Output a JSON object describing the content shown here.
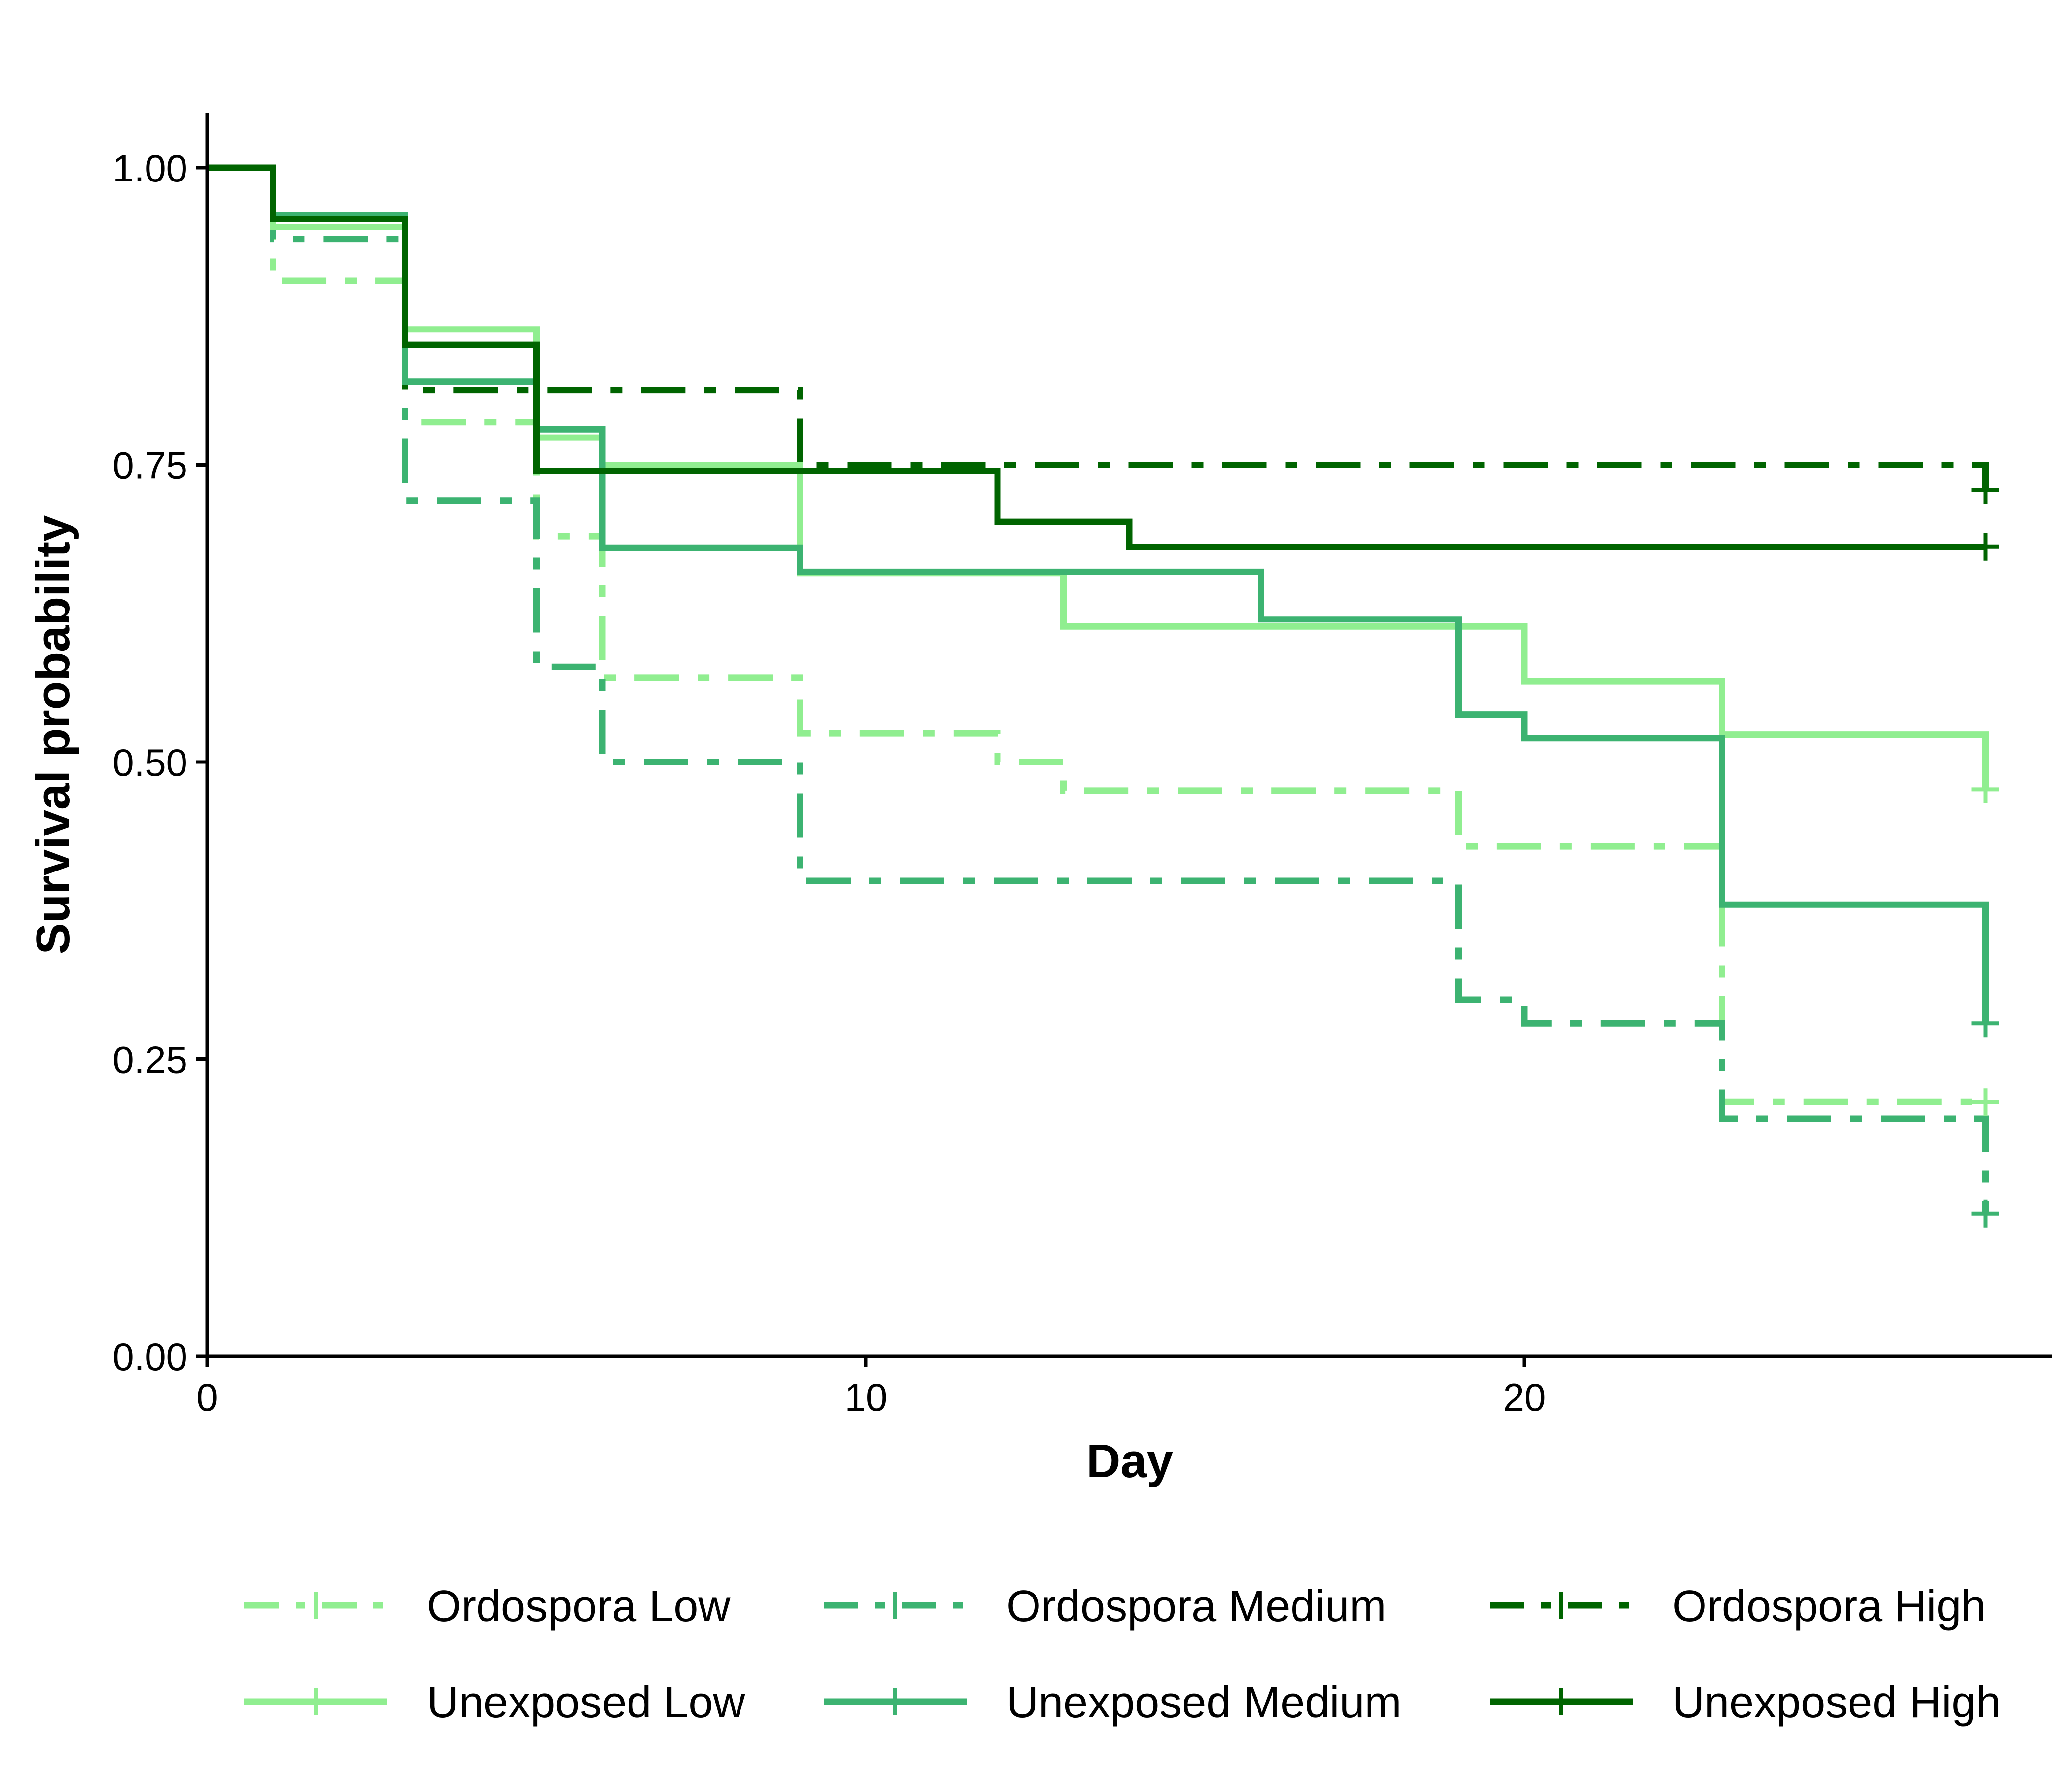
{
  "chart_data": {
    "type": "line",
    "step": "post",
    "xlabel": "Day",
    "ylabel": "Survival probability",
    "xlim": [
      0,
      28
    ],
    "ylim": [
      0,
      1.05
    ],
    "x_ticks": [
      0,
      10,
      20
    ],
    "x_tick_labels": [
      "0",
      "10",
      "20"
    ],
    "y_ticks": [
      0,
      0.25,
      0.5,
      0.75,
      1.0
    ],
    "y_tick_labels": [
      "0.00",
      "0.25",
      "0.50",
      "0.75",
      "1.00"
    ],
    "grid": false,
    "legend_position": "bottom",
    "legend_columns": 3,
    "censor_marker": "+",
    "series": [
      {
        "name": "Ordospora Low",
        "color": "#90ee90",
        "linestyle": "dotdash",
        "x": [
          0,
          1,
          3,
          5,
          6,
          9,
          12,
          13,
          19,
          23,
          27
        ],
        "y": [
          1.0,
          0.905,
          0.786,
          0.69,
          0.571,
          0.524,
          0.5,
          0.476,
          0.429,
          0.214,
          0.214
        ],
        "censor_x": [
          27
        ],
        "censor_y": [
          0.214
        ]
      },
      {
        "name": "Ordospora Medium",
        "color": "#3cb371",
        "linestyle": "dotdash",
        "x": [
          0,
          1,
          3,
          5,
          6,
          9,
          19,
          20,
          23,
          27
        ],
        "y": [
          1.0,
          0.94,
          0.72,
          0.58,
          0.5,
          0.4,
          0.3,
          0.28,
          0.2,
          0.12
        ],
        "censor_x": [
          27
        ],
        "censor_y": [
          0.12
        ]
      },
      {
        "name": "Ordospora High",
        "color": "#006400",
        "linestyle": "dotdash",
        "x": [
          0,
          1,
          3,
          9,
          27
        ],
        "y": [
          1.0,
          0.958,
          0.813,
          0.75,
          0.729
        ],
        "censor_x": [
          27
        ],
        "censor_y": [
          0.729
        ]
      },
      {
        "name": "Unexposed Low",
        "color": "#90ee90",
        "linestyle": "solid",
        "x": [
          0,
          1,
          3,
          5,
          6,
          9,
          13,
          19,
          20,
          23,
          27
        ],
        "y": [
          1.0,
          0.95,
          0.864,
          0.773,
          0.75,
          0.659,
          0.614,
          0.614,
          0.568,
          0.523,
          0.477
        ],
        "censor_x": [
          27
        ],
        "censor_y": [
          0.477
        ]
      },
      {
        "name": "Unexposed Medium",
        "color": "#3cb371",
        "linestyle": "solid",
        "x": [
          0,
          1,
          3,
          5,
          6,
          9,
          16,
          19,
          20,
          23,
          27
        ],
        "y": [
          1.0,
          0.96,
          0.82,
          0.78,
          0.68,
          0.66,
          0.62,
          0.54,
          0.52,
          0.38,
          0.28
        ],
        "censor_x": [
          27
        ],
        "censor_y": [
          0.28
        ]
      },
      {
        "name": "Unexposed High",
        "color": "#006400",
        "linestyle": "solid",
        "x": [
          0,
          1,
          3,
          5,
          12,
          14,
          27
        ],
        "y": [
          1.0,
          0.957,
          0.851,
          0.745,
          0.702,
          0.681,
          0.681
        ],
        "censor_x": [
          27
        ],
        "censor_y": [
          0.681
        ]
      }
    ]
  }
}
